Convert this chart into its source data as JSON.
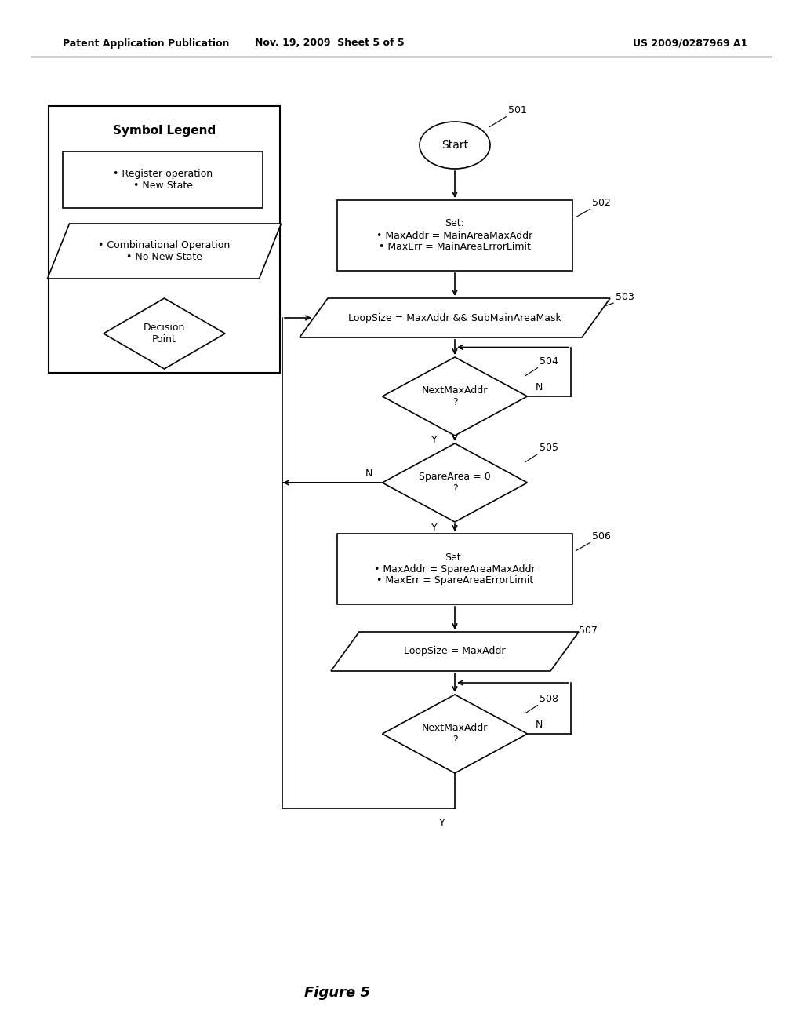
{
  "bg_color": "#ffffff",
  "header_left": "Patent Application Publication",
  "header_mid": "Nov. 19, 2009  Sheet 5 of 5",
  "header_right": "US 2009/0287969 A1",
  "figure_label": "Figure 5"
}
